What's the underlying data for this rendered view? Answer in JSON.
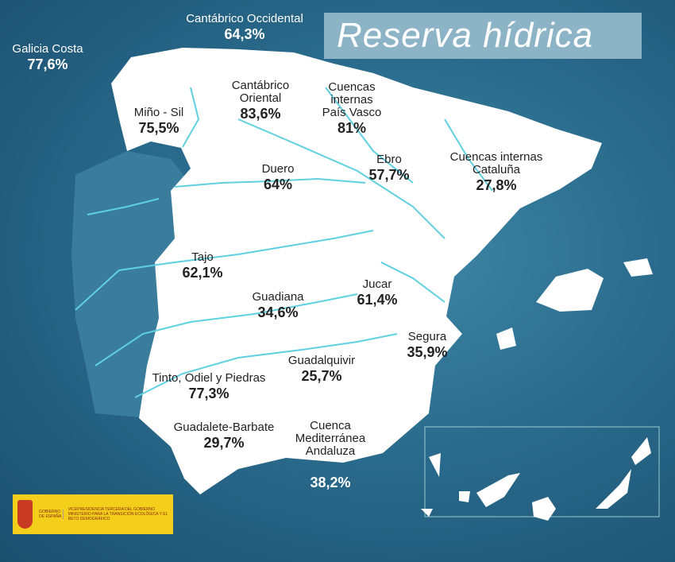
{
  "title": "Reserva hídrica",
  "colors": {
    "sea": "#2a6b8d",
    "land": "#ffffff",
    "rivers": "#5fd0e0",
    "title_box": "#8db3c7",
    "logo": "#f3cf1b"
  },
  "basins": [
    {
      "name": "Galicia Costa",
      "value": "77,6%"
    },
    {
      "name": "Cantábrico Occidental",
      "value": "64,3%"
    },
    {
      "name": "Miño - Sil",
      "value": "75,5%"
    },
    {
      "name": "Cantábrico Oriental",
      "value": "83,6%"
    },
    {
      "name": "Cuencas internas País Vasco",
      "value": "81%"
    },
    {
      "name": "Duero",
      "value": "64%"
    },
    {
      "name": "Ebro",
      "value": "57,7%"
    },
    {
      "name": "Cuencas internas Cataluña",
      "value": "27,8%"
    },
    {
      "name": "Tajo",
      "value": "62,1%"
    },
    {
      "name": "Guadiana",
      "value": "34,6%"
    },
    {
      "name": "Jucar",
      "value": "61,4%"
    },
    {
      "name": "Segura",
      "value": "35,9%"
    },
    {
      "name": "Guadalquivir",
      "value": "25,7%"
    },
    {
      "name": "Tinto, Odiel y Piedras",
      "value": "77,3%"
    },
    {
      "name": "Guadalete-Barbate",
      "value": "29,7%"
    },
    {
      "name": "Cuenca Mediterránea Andaluza",
      "value": "38,2%"
    }
  ],
  "logo": {
    "left": "GOBIERNO DE ESPAÑA",
    "right_1": "VICEPRESIDENCIA TERCERA DEL GOBIERNO",
    "right_2": "MINISTERIO PARA LA TRANSICIÓN ECOLÓGICA Y EL RETO DEMOGRÁFICO"
  }
}
